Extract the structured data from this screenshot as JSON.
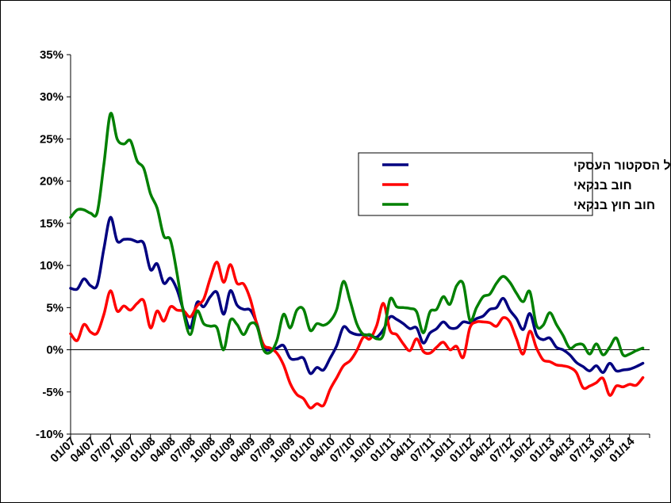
{
  "chart_data": {
    "type": "line",
    "title": "",
    "xlabel": "",
    "ylabel": "",
    "ylim": [
      -10,
      35
    ],
    "y_ticks": [
      "35%",
      "30%",
      "25%",
      "20%",
      "15%",
      "10%",
      "5%",
      "0%",
      "-5%",
      "-10%"
    ],
    "y_tick_values": [
      35,
      30,
      25,
      20,
      15,
      10,
      5,
      0,
      -5,
      -10
    ],
    "x_tick_labels": [
      "01/07",
      "04/07",
      "07/07",
      "10/07",
      "01/08",
      "04/08",
      "07/08",
      "10/08",
      "01/09",
      "04/09",
      "07/09",
      "10/09",
      "01/10",
      "04/10",
      "07/10",
      "10/10",
      "01/11",
      "04/11",
      "07/11",
      "10/11",
      "01/12",
      "04/12",
      "07/12",
      "10/12",
      "01/13",
      "04/13",
      "07/13",
      "10/13",
      "01/14"
    ],
    "x_start_month": 0,
    "x_end_month": 87,
    "grid": false,
    "legend_position": "center-right",
    "series": [
      {
        "name": "סך החוב של הסקטור העסקי",
        "color": "#000080",
        "points": [
          [
            0,
            7.3
          ],
          [
            1,
            7.2
          ],
          [
            2,
            8.4
          ],
          [
            3,
            7.6
          ],
          [
            4,
            7.7
          ],
          [
            5,
            12
          ],
          [
            6,
            15.7
          ],
          [
            7,
            12.9
          ],
          [
            8,
            13.1
          ],
          [
            9,
            13.1
          ],
          [
            10,
            12.8
          ],
          [
            11,
            12.6
          ],
          [
            12,
            9.5
          ],
          [
            13,
            10.2
          ],
          [
            14,
            7.9
          ],
          [
            15,
            8.5
          ],
          [
            16,
            7.1
          ],
          [
            17,
            4.6
          ],
          [
            18,
            2.6
          ],
          [
            19,
            5.6
          ],
          [
            20,
            5.1
          ],
          [
            21,
            6.3
          ],
          [
            22,
            6.8
          ],
          [
            23,
            4.2
          ],
          [
            24,
            7
          ],
          [
            25,
            5.3
          ],
          [
            26,
            4.8
          ],
          [
            27,
            4.7
          ],
          [
            28,
            3.1
          ],
          [
            29,
            0.3
          ],
          [
            30,
            0
          ],
          [
            31,
            0.2
          ],
          [
            32,
            0.5
          ],
          [
            33,
            -1
          ],
          [
            34,
            -1.1
          ],
          [
            35,
            -1
          ],
          [
            36,
            -2.8
          ],
          [
            37,
            -2.1
          ],
          [
            38,
            -2.4
          ],
          [
            39,
            -1
          ],
          [
            40,
            0.5
          ],
          [
            41,
            2.7
          ],
          [
            42,
            2.1
          ],
          [
            43,
            1.8
          ],
          [
            44,
            1.8
          ],
          [
            45,
            1.7
          ],
          [
            46,
            1.5
          ],
          [
            47,
            2.4
          ],
          [
            48,
            3.9
          ],
          [
            49,
            3.6
          ],
          [
            50,
            3.1
          ],
          [
            51,
            2.5
          ],
          [
            52,
            2.6
          ],
          [
            53,
            0.8
          ],
          [
            54,
            2
          ],
          [
            55,
            2.5
          ],
          [
            56,
            3.3
          ],
          [
            57,
            2.6
          ],
          [
            58,
            2.6
          ],
          [
            59,
            3.3
          ],
          [
            60,
            3.2
          ],
          [
            61,
            3.7
          ],
          [
            62,
            4
          ],
          [
            63,
            4.8
          ],
          [
            64,
            5
          ],
          [
            65,
            6.1
          ],
          [
            66,
            4.7
          ],
          [
            67,
            3.7
          ],
          [
            68,
            2.4
          ],
          [
            69,
            4.3
          ],
          [
            70,
            1.8
          ],
          [
            71,
            1.2
          ],
          [
            72,
            1.4
          ],
          [
            73,
            0.3
          ],
          [
            74,
            0
          ],
          [
            75,
            -0.6
          ],
          [
            76,
            -1.5
          ],
          [
            77,
            -2
          ],
          [
            78,
            -2.5
          ],
          [
            79,
            -1.9
          ],
          [
            80,
            -2.7
          ],
          [
            81,
            -1.6
          ],
          [
            82,
            -2.5
          ],
          [
            83,
            -2.4
          ],
          [
            84,
            -2.3
          ],
          [
            85,
            -2
          ],
          [
            86,
            -1.6
          ]
        ]
      },
      {
        "name": "חוב בנקאי",
        "color": "#ff0000",
        "points": [
          [
            0,
            1.9
          ],
          [
            1,
            1.1
          ],
          [
            2,
            3
          ],
          [
            3,
            2.1
          ],
          [
            4,
            2
          ],
          [
            5,
            4.2
          ],
          [
            6,
            7
          ],
          [
            7,
            4.6
          ],
          [
            8,
            5.2
          ],
          [
            9,
            4.7
          ],
          [
            10,
            5.5
          ],
          [
            11,
            5.8
          ],
          [
            12,
            2.6
          ],
          [
            13,
            4.6
          ],
          [
            14,
            3.4
          ],
          [
            15,
            5.1
          ],
          [
            16,
            4.7
          ],
          [
            17,
            4.6
          ],
          [
            18,
            3.9
          ],
          [
            19,
            5.2
          ],
          [
            20,
            6
          ],
          [
            21,
            8.5
          ],
          [
            22,
            10.4
          ],
          [
            23,
            8
          ],
          [
            24,
            10.1
          ],
          [
            25,
            7.9
          ],
          [
            26,
            7.8
          ],
          [
            27,
            6
          ],
          [
            28,
            3
          ],
          [
            29,
            0.6
          ],
          [
            30,
            0.2
          ],
          [
            31,
            -0.4
          ],
          [
            32,
            -1.8
          ],
          [
            33,
            -4
          ],
          [
            34,
            -5.3
          ],
          [
            35,
            -5.8
          ],
          [
            36,
            -6.9
          ],
          [
            37,
            -6.4
          ],
          [
            38,
            -6.6
          ],
          [
            39,
            -4.7
          ],
          [
            40,
            -3.3
          ],
          [
            41,
            -1.9
          ],
          [
            42,
            -1.3
          ],
          [
            43,
            -0.1
          ],
          [
            44,
            1.5
          ],
          [
            45,
            1.3
          ],
          [
            46,
            2.9
          ],
          [
            47,
            5.5
          ],
          [
            48,
            2.3
          ],
          [
            49,
            1.8
          ],
          [
            50,
            0.7
          ],
          [
            51,
            -0.1
          ],
          [
            52,
            1.3
          ],
          [
            53,
            -0.2
          ],
          [
            54,
            -0.4
          ],
          [
            55,
            0.3
          ],
          [
            56,
            0.9
          ],
          [
            57,
            0
          ],
          [
            58,
            0.4
          ],
          [
            59,
            -0.9
          ],
          [
            60,
            2.6
          ],
          [
            61,
            3.3
          ],
          [
            62,
            3.3
          ],
          [
            63,
            3.2
          ],
          [
            64,
            2.8
          ],
          [
            65,
            3.8
          ],
          [
            66,
            3.3
          ],
          [
            67,
            1.3
          ],
          [
            68,
            -0.5
          ],
          [
            69,
            2.2
          ],
          [
            70,
            0.2
          ],
          [
            71,
            -1.2
          ],
          [
            72,
            -1.4
          ],
          [
            73,
            -1.8
          ],
          [
            74,
            -1.9
          ],
          [
            75,
            -2.1
          ],
          [
            76,
            -2.7
          ],
          [
            77,
            -4.5
          ],
          [
            78,
            -4.3
          ],
          [
            79,
            -3.9
          ],
          [
            80,
            -3.4
          ],
          [
            81,
            -5.4
          ],
          [
            82,
            -4.3
          ],
          [
            83,
            -4.4
          ],
          [
            84,
            -4.1
          ],
          [
            85,
            -4.2
          ],
          [
            86,
            -3.3
          ]
        ]
      },
      {
        "name": "חוב חוץ בנקאי",
        "color": "#008000",
        "points": [
          [
            0,
            15.7
          ],
          [
            1,
            16.6
          ],
          [
            2,
            16.6
          ],
          [
            3,
            16.2
          ],
          [
            4,
            16.3
          ],
          [
            5,
            22
          ],
          [
            6,
            28
          ],
          [
            7,
            25
          ],
          [
            8,
            24.4
          ],
          [
            9,
            24.8
          ],
          [
            10,
            22.4
          ],
          [
            11,
            21.5
          ],
          [
            12,
            18.5
          ],
          [
            13,
            16.8
          ],
          [
            14,
            13.5
          ],
          [
            15,
            13
          ],
          [
            16,
            9
          ],
          [
            17,
            4.3
          ],
          [
            18,
            1.8
          ],
          [
            19,
            4.6
          ],
          [
            20,
            3.1
          ],
          [
            21,
            2.8
          ],
          [
            22,
            2.6
          ],
          [
            23,
            0
          ],
          [
            24,
            3.5
          ],
          [
            25,
            3
          ],
          [
            26,
            1.8
          ],
          [
            27,
            3.1
          ],
          [
            28,
            2.8
          ],
          [
            29,
            0
          ],
          [
            30,
            -0.3
          ],
          [
            31,
            1.1
          ],
          [
            32,
            4.2
          ],
          [
            33,
            2.6
          ],
          [
            34,
            4.7
          ],
          [
            35,
            4.8
          ],
          [
            36,
            2.3
          ],
          [
            37,
            3.1
          ],
          [
            38,
            2.9
          ],
          [
            39,
            3.4
          ],
          [
            40,
            4.8
          ],
          [
            41,
            8.1
          ],
          [
            42,
            5.8
          ],
          [
            43,
            3.1
          ],
          [
            44,
            1.8
          ],
          [
            45,
            1.8
          ],
          [
            46,
            1.3
          ],
          [
            47,
            1.8
          ],
          [
            48,
            6
          ],
          [
            49,
            5.1
          ],
          [
            50,
            5
          ],
          [
            51,
            4.9
          ],
          [
            52,
            4.5
          ],
          [
            53,
            2
          ],
          [
            54,
            4.5
          ],
          [
            55,
            4.8
          ],
          [
            56,
            6.3
          ],
          [
            57,
            5.4
          ],
          [
            58,
            7.6
          ],
          [
            59,
            7.8
          ],
          [
            60,
            3.5
          ],
          [
            61,
            5
          ],
          [
            62,
            6.3
          ],
          [
            63,
            6.6
          ],
          [
            64,
            7.9
          ],
          [
            65,
            8.7
          ],
          [
            66,
            8
          ],
          [
            67,
            6.7
          ],
          [
            68,
            5.7
          ],
          [
            69,
            6.9
          ],
          [
            70,
            2.9
          ],
          [
            71,
            2.9
          ],
          [
            72,
            4.4
          ],
          [
            73,
            3
          ],
          [
            74,
            1.7
          ],
          [
            75,
            0.2
          ],
          [
            76,
            0.6
          ],
          [
            77,
            0.6
          ],
          [
            78,
            -0.5
          ],
          [
            79,
            0.7
          ],
          [
            80,
            -0.6
          ],
          [
            81,
            0.3
          ],
          [
            82,
            1.4
          ],
          [
            83,
            -0.6
          ],
          [
            84,
            -0.5
          ],
          [
            85,
            -0.1
          ],
          [
            86,
            0.2
          ]
        ]
      }
    ]
  }
}
